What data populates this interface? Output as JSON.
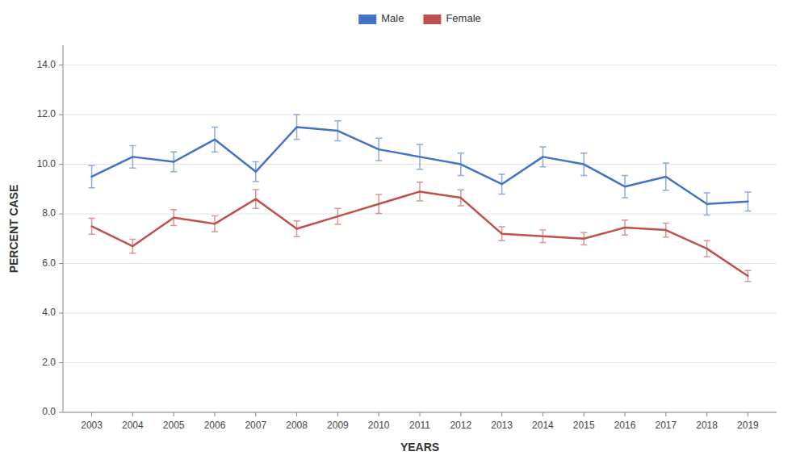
{
  "chart_data": {
    "type": "line",
    "xlabel": "YEARS",
    "ylabel": "PERCENT CASE",
    "x": [
      2003,
      2004,
      2005,
      2006,
      2007,
      2008,
      2009,
      2010,
      2011,
      2012,
      2013,
      2014,
      2015,
      2016,
      2017,
      2018,
      2019
    ],
    "series": [
      {
        "name": "Male",
        "color": "#4472C4",
        "values": [
          9.5,
          10.3,
          10.1,
          11.0,
          9.7,
          11.5,
          11.35,
          10.6,
          10.3,
          10.0,
          9.2,
          10.3,
          10.0,
          9.1,
          9.5,
          8.4,
          8.5
        ],
        "errors": [
          0.45,
          0.45,
          0.4,
          0.5,
          0.4,
          0.5,
          0.4,
          0.45,
          0.5,
          0.45,
          0.4,
          0.4,
          0.45,
          0.45,
          0.55,
          0.45,
          0.38
        ]
      },
      {
        "name": "Female",
        "color": "#C0504D",
        "values": [
          7.5,
          6.7,
          7.85,
          7.6,
          8.6,
          7.4,
          7.9,
          8.4,
          8.9,
          8.65,
          7.2,
          7.1,
          7.0,
          7.45,
          7.35,
          6.6,
          5.5
        ],
        "errors": [
          0.32,
          0.28,
          0.32,
          0.32,
          0.38,
          0.32,
          0.32,
          0.38,
          0.38,
          0.32,
          0.28,
          0.25,
          0.25,
          0.3,
          0.28,
          0.32,
          0.22
        ]
      }
    ],
    "xlim": [
      2002.3,
      2019.7
    ],
    "xticks": [
      2003,
      2004,
      2005,
      2006,
      2007,
      2008,
      2009,
      2010,
      2011,
      2012,
      2013,
      2014,
      2015,
      2016,
      2017,
      2018,
      2019
    ],
    "ylim": [
      0.0,
      14.801
    ],
    "yticks": [
      {
        "value": 0.0,
        "label": "0.0"
      },
      {
        "value": 2.0,
        "label": "2.0"
      },
      {
        "value": 4.0,
        "label": "4.0"
      },
      {
        "value": 6.0,
        "label": "6.0"
      },
      {
        "value": 8.0,
        "label": "8.0"
      },
      {
        "value": 10.0,
        "label": "10.0"
      },
      {
        "value": 12.0,
        "label": "12.0"
      },
      {
        "value": 14.0,
        "label": "14.0"
      }
    ],
    "grid": true,
    "legend": "top"
  }
}
